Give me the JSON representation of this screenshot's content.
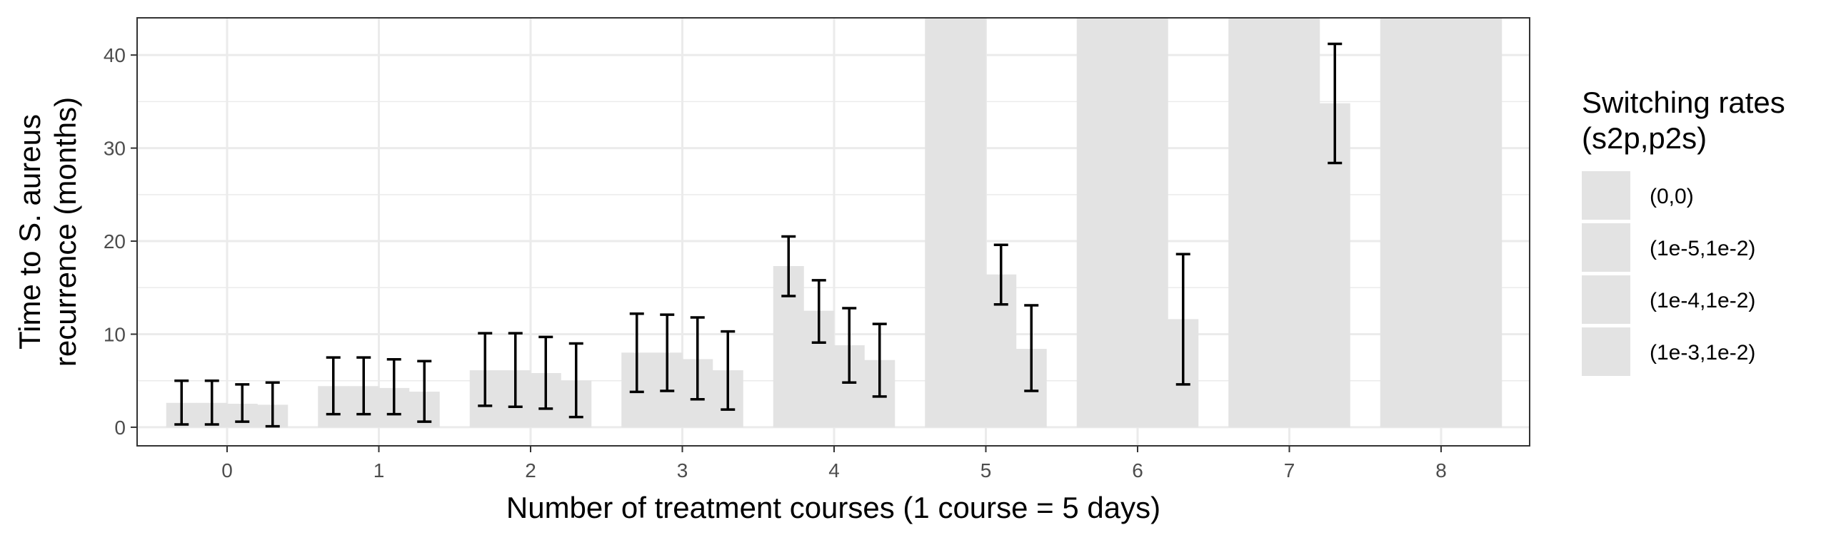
{
  "chart_data": {
    "type": "bar",
    "xlabel": "Number of treatment courses (1 course = 5 days)",
    "ylabel_lines": [
      "Time to S. aureus",
      "recurrence (months)"
    ],
    "categories": [
      "0",
      "1",
      "2",
      "3",
      "4",
      "5",
      "6",
      "7",
      "8"
    ],
    "yticks": [
      "0",
      "10",
      "20",
      "30",
      "40"
    ],
    "ylim": [
      -2,
      44
    ],
    "grid": true,
    "legend": {
      "title_lines": [
        "Switching rates",
        "(s2p,p2s)"
      ],
      "position": "right"
    },
    "colors": {
      "bar": "#e3e3e3",
      "errorbar": "#000000",
      "grid": "#ebebeb",
      "border": "#333333"
    },
    "series": [
      {
        "name": "(0,0)",
        "values": [
          2.6,
          4.4,
          6.1,
          8.0,
          17.3,
          44,
          44,
          44,
          44
        ],
        "error_low": [
          0.3,
          1.4,
          2.3,
          3.8,
          14.1,
          null,
          null,
          null,
          null
        ],
        "error_high": [
          5.0,
          7.5,
          10.1,
          12.2,
          20.5,
          null,
          null,
          null,
          null
        ]
      },
      {
        "name": "(1e-5,1e-2)",
        "values": [
          2.6,
          4.4,
          6.1,
          8.0,
          12.5,
          44,
          44,
          44,
          44
        ],
        "error_low": [
          0.3,
          1.4,
          2.2,
          3.9,
          9.1,
          null,
          null,
          null,
          null
        ],
        "error_high": [
          5.0,
          7.5,
          10.1,
          12.1,
          15.8,
          null,
          null,
          null,
          null
        ]
      },
      {
        "name": "(1e-4,1e-2)",
        "values": [
          2.5,
          4.2,
          5.8,
          7.3,
          8.8,
          16.4,
          44,
          44,
          44
        ],
        "error_low": [
          0.6,
          1.4,
          2.0,
          3.0,
          4.8,
          13.2,
          null,
          null,
          null
        ],
        "error_high": [
          4.6,
          7.3,
          9.7,
          11.8,
          12.8,
          19.6,
          null,
          null,
          null
        ]
      },
      {
        "name": "(1e-3,1e-2)",
        "values": [
          2.4,
          3.8,
          5.0,
          6.1,
          7.2,
          8.4,
          11.6,
          34.8,
          44
        ],
        "error_low": [
          0.1,
          0.6,
          1.1,
          1.9,
          3.3,
          3.9,
          4.6,
          28.4,
          null
        ],
        "error_high": [
          4.8,
          7.1,
          9.0,
          10.3,
          11.1,
          13.1,
          18.6,
          41.2,
          null
        ]
      }
    ]
  }
}
